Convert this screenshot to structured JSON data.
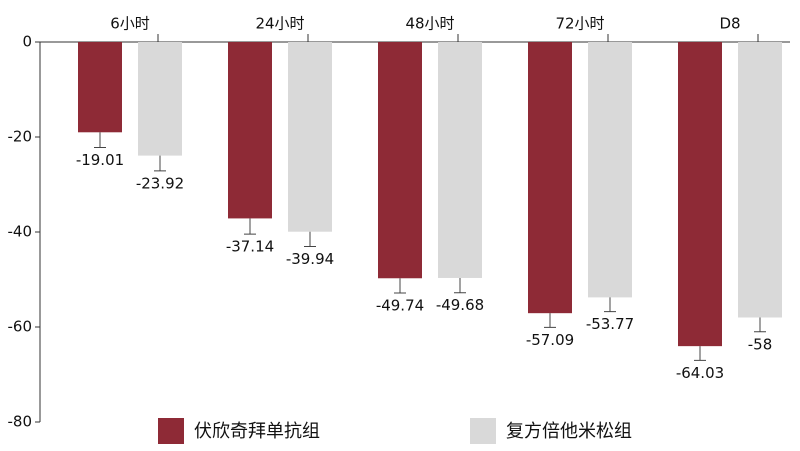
{
  "chart_data": {
    "type": "bar",
    "categories": [
      "6小时",
      "24小时",
      "48小时",
      "72小时",
      "D8"
    ],
    "series": [
      {
        "name": "伏欣奇拜单抗组",
        "color": "#8e2a36",
        "values": [
          -19.01,
          -37.14,
          -49.74,
          -57.09,
          -64.03
        ],
        "errors": [
          3.2,
          3.3,
          3.1,
          3,
          3
        ]
      },
      {
        "name": "复方倍他米松组",
        "color": "#d9d9d9",
        "values": [
          -23.92,
          -39.94,
          -49.68,
          -53.77,
          -58
        ],
        "errors": [
          3.2,
          3.1,
          3.1,
          3,
          3
        ]
      }
    ],
    "ylim": [
      -80,
      0
    ],
    "yticks": [
      0,
      -20,
      -40,
      -60,
      -80
    ]
  }
}
